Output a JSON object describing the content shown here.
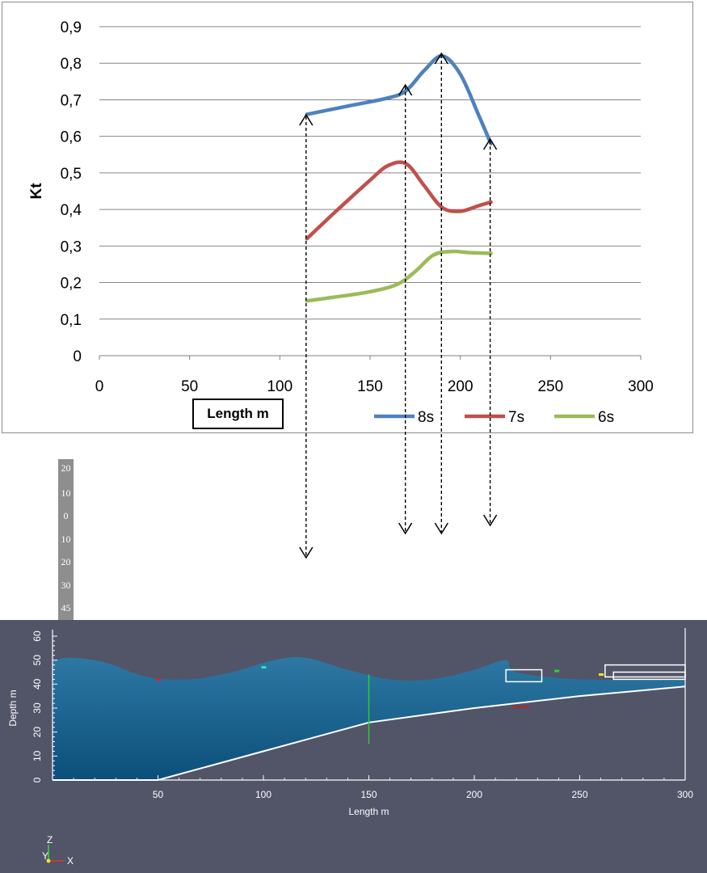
{
  "chart_data": [
    {
      "type": "line",
      "ylabel": "Kt",
      "xlabel": "Length m",
      "xlim": [
        0,
        300
      ],
      "ylim": [
        0,
        0.9
      ],
      "x_ticks": [
        "0",
        "50",
        "100",
        "150",
        "200",
        "250",
        "300"
      ],
      "y_ticks": [
        "0",
        "0,1",
        "0,2",
        "0,3",
        "0,4",
        "0,5",
        "0,6",
        "0,7",
        "0,8",
        "0,9"
      ],
      "grid": true,
      "legend_position": "bottom-right",
      "series": [
        {
          "name": "8s",
          "color": "#4f81bd",
          "x": [
            115,
            140,
            160,
            170,
            180,
            190,
            200,
            210,
            217
          ],
          "y": [
            0.66,
            0.685,
            0.705,
            0.725,
            0.78,
            0.82,
            0.77,
            0.66,
            0.58
          ]
        },
        {
          "name": "7s",
          "color": "#c0504d",
          "x": [
            115,
            130,
            150,
            160,
            170,
            180,
            190,
            200,
            210,
            217
          ],
          "y": [
            0.32,
            0.39,
            0.48,
            0.52,
            0.525,
            0.465,
            0.405,
            0.395,
            0.41,
            0.42
          ]
        },
        {
          "name": "6s",
          "color": "#9bbb59",
          "x": [
            115,
            130,
            150,
            165,
            175,
            185,
            195,
            205,
            217
          ],
          "y": [
            0.15,
            0.16,
            0.175,
            0.195,
            0.23,
            0.275,
            0.285,
            0.282,
            0.28
          ]
        }
      ]
    },
    {
      "type": "area",
      "xlabel": "Length m",
      "ylabel": "Depth m",
      "xlim": [
        0,
        300
      ],
      "ylim": [
        0,
        60
      ],
      "x_ticks": [
        "50",
        "100",
        "150",
        "200",
        "250",
        "300"
      ],
      "y_ticks": [
        "0",
        "10",
        "20",
        "30",
        "40",
        "50",
        "60"
      ],
      "seabed": {
        "x": [
          0,
          50,
          100,
          150,
          200,
          250,
          300
        ],
        "y": [
          0,
          0,
          12,
          24,
          30,
          35,
          39
        ]
      },
      "free_surface": {
        "x": [
          0,
          10,
          25,
          45,
          65,
          85,
          105,
          120,
          140,
          160,
          180,
          200,
          215,
          220,
          250,
          300
        ],
        "y": [
          50,
          51,
          49,
          43,
          42,
          45,
          50,
          51,
          46,
          42,
          42,
          46,
          50,
          45,
          42,
          42
        ]
      },
      "axis_triad": {
        "z": "Z",
        "y": "Y",
        "x": "X"
      }
    }
  ],
  "arrow_x_positions": [
    115,
    170,
    190,
    217
  ],
  "depth_strip_labels": [
    "20",
    "10",
    "0",
    "10",
    "20",
    "30",
    "45"
  ]
}
